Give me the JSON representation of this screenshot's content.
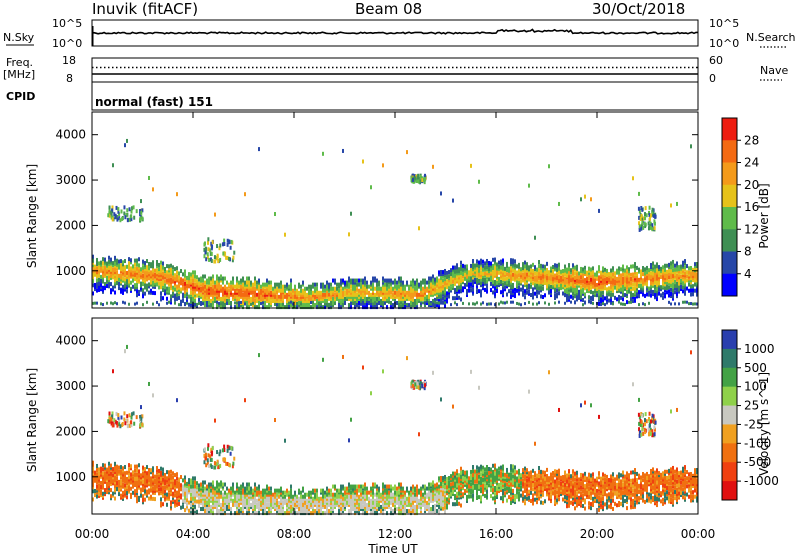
{
  "header": {
    "station": "Inuvik (fitACF)",
    "beam": "Beam 08",
    "date": "30/Oct/2018"
  },
  "top_panel": {
    "left_label_sky": "N.Sky",
    "left_label_freq_1": "Freq.",
    "left_label_freq_2": "[MHz]",
    "left_label_cpid": "CPID",
    "right_label_search": "N.Search",
    "right_label_nave": "Nave",
    "sky_ticks": [
      "10^5",
      "10^0"
    ],
    "search_ticks": [
      "10^5",
      "10^0"
    ],
    "freq_ticks": [
      "18",
      "8"
    ],
    "nave_ticks": [
      "60",
      "0"
    ],
    "cpid_text": "normal (fast) 151"
  },
  "x_axis": {
    "label": "Time UT",
    "ticks": [
      "00:00",
      "04:00",
      "08:00",
      "12:00",
      "16:00",
      "20:00",
      "00:00"
    ]
  },
  "chart_data": [
    {
      "type": "heatmap",
      "quantity": "Power",
      "ylabel": "Slant Range [km]",
      "yticks": [
        1000,
        2000,
        3000,
        4000
      ],
      "ylim": [
        180,
        4500
      ],
      "xlim_hours": [
        0,
        24
      ],
      "colorbar_label": "Power [dB]",
      "colorbar_ticks": [
        4,
        8,
        12,
        16,
        20,
        24,
        28
      ],
      "colorbar_colors": [
        "#0000ff",
        "#2747a8",
        "#3f8f54",
        "#5fbb4a",
        "#e6c21a",
        "#f49a1a",
        "#f46a12",
        "#ee1c10"
      ],
      "main_band": [
        {
          "t": 0.2,
          "range": 1000,
          "dB": 24
        },
        {
          "t": 2.5,
          "range": 900,
          "dB": 26
        },
        {
          "t": 4.5,
          "range": 560,
          "dB": 28
        },
        {
          "t": 6.5,
          "range": 500,
          "dB": 28
        },
        {
          "t": 8.5,
          "range": 420,
          "dB": 24
        },
        {
          "t": 10.5,
          "range": 540,
          "dB": 22
        },
        {
          "t": 13.0,
          "range": 480,
          "dB": 24
        },
        {
          "t": 15.0,
          "range": 960,
          "dB": 20
        },
        {
          "t": 17.0,
          "range": 900,
          "dB": 24
        },
        {
          "t": 20.0,
          "range": 760,
          "dB": 28
        },
        {
          "t": 23.5,
          "range": 900,
          "dB": 24
        }
      ]
    },
    {
      "type": "heatmap",
      "quantity": "Velocity",
      "ylabel": "Slant Range [km]",
      "yticks": [
        1000,
        2000,
        3000,
        4000
      ],
      "ylim": [
        180,
        4500
      ],
      "xlim_hours": [
        0,
        24
      ],
      "colorbar_label": "Velocity [m s^-1]",
      "colorbar_ticks": [
        1000,
        500,
        100,
        25,
        -25,
        -100,
        -500,
        -1000
      ],
      "colorbar_colors": [
        "#2a3fae",
        "#2f7a6a",
        "#43a245",
        "#8fd14a",
        "#c8c8c0",
        "#f0a020",
        "#f07010",
        "#f04010",
        "#e01010"
      ]
    }
  ],
  "colors": {
    "axis": "#000000",
    "trace": "#000000"
  }
}
